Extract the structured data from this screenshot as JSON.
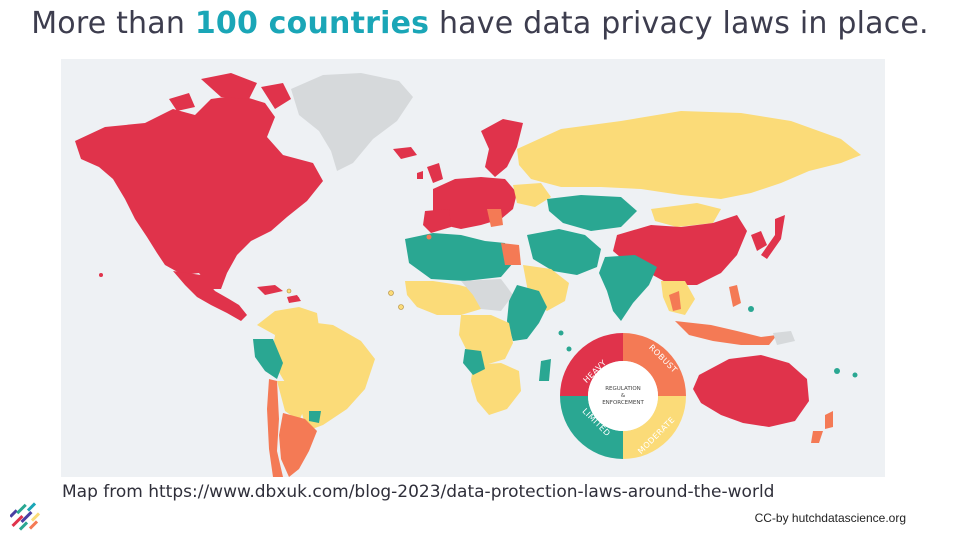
{
  "title": {
    "before": "More than ",
    "highlight": "100 countries",
    "after": " have data privacy laws in place."
  },
  "caption": "Map from https://www.dbxuk.com/blog-2023/data-protection-laws-around-the-world",
  "credit": "CC-by hutchdatascience.org",
  "map": {
    "legend": {
      "center_line1": "REGULATION",
      "center_line2": "&",
      "center_line3": "ENFORCEMENT",
      "categories": [
        {
          "label": "HEAVY",
          "color": "#e0334b"
        },
        {
          "label": "ROBUST",
          "color": "#f47a55"
        },
        {
          "label": "MODERATE",
          "color": "#fbdb78"
        },
        {
          "label": "LIMITED",
          "color": "#2aa792"
        }
      ],
      "no_data_color": "#d6d9db"
    }
  }
}
